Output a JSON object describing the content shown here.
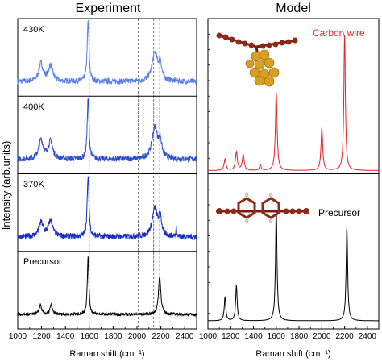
{
  "chart_data": [
    {
      "type": "line",
      "title": "Experiment",
      "xlabel": "Raman shift (cm⁻¹)",
      "ylabel": "Intensity (arb.units)",
      "xlim": [
        1000,
        2500
      ],
      "xticks": [
        "1000",
        "1200",
        "1400",
        "1600",
        "1800",
        "2000",
        "2200",
        "2400"
      ],
      "reference_lines": [
        1600,
        2010,
        2140,
        2190
      ],
      "series": [
        {
          "name": "430K",
          "color": "#5b7fe6",
          "peaks": [
            {
              "x": 1195,
              "h": 0.28,
              "w": 22
            },
            {
              "x": 1275,
              "h": 0.25,
              "w": 22
            },
            {
              "x": 1590,
              "h": 0.95,
              "w": 9
            },
            {
              "x": 2150,
              "h": 0.45,
              "w": 28
            },
            {
              "x": 2195,
              "h": 0.25,
              "w": 14
            }
          ]
        },
        {
          "name": "400K",
          "color": "#2d4fd6",
          "peaks": [
            {
              "x": 1195,
              "h": 0.3,
              "w": 22
            },
            {
              "x": 1275,
              "h": 0.28,
              "w": 22
            },
            {
              "x": 1590,
              "h": 0.95,
              "w": 9
            },
            {
              "x": 2150,
              "h": 0.5,
              "w": 28
            },
            {
              "x": 2195,
              "h": 0.25,
              "w": 14
            }
          ]
        },
        {
          "name": "370K",
          "color": "#1a2fbf",
          "peaks": [
            {
              "x": 1195,
              "h": 0.22,
              "w": 22
            },
            {
              "x": 1275,
              "h": 0.25,
              "w": 22
            },
            {
              "x": 1590,
              "h": 0.95,
              "w": 9
            },
            {
              "x": 2150,
              "h": 0.45,
              "w": 26
            },
            {
              "x": 2195,
              "h": 0.3,
              "w": 12
            },
            {
              "x": 2330,
              "h": 0.2,
              "w": 3
            }
          ]
        },
        {
          "name": "Precursor",
          "color": "#000000",
          "peaks": [
            {
              "x": 1190,
              "h": 0.15,
              "w": 12
            },
            {
              "x": 1280,
              "h": 0.15,
              "w": 12
            },
            {
              "x": 1590,
              "h": 0.9,
              "w": 8
            },
            {
              "x": 2190,
              "h": 0.6,
              "w": 12
            }
          ]
        }
      ]
    },
    {
      "type": "line",
      "title": "Model",
      "xlabel": "Raman shift (cm⁻¹)",
      "xlim": [
        1000,
        2500
      ],
      "xticks": [
        "1000",
        "1200",
        "1400",
        "1600",
        "1800",
        "2000",
        "2200",
        "2400"
      ],
      "series": [
        {
          "name": "Carbon wire",
          "color": "#e8202a",
          "peaks": [
            {
              "x": 1150,
              "h": 0.08,
              "w": 10
            },
            {
              "x": 1250,
              "h": 0.13,
              "w": 10
            },
            {
              "x": 1310,
              "h": 0.11,
              "w": 10
            },
            {
              "x": 1460,
              "h": 0.04,
              "w": 8
            },
            {
              "x": 1600,
              "h": 0.55,
              "w": 9
            },
            {
              "x": 2000,
              "h": 0.3,
              "w": 9
            },
            {
              "x": 2200,
              "h": 0.95,
              "w": 8
            }
          ]
        },
        {
          "name": "Precursor",
          "color": "#000000",
          "peaks": [
            {
              "x": 1150,
              "h": 0.17,
              "w": 8
            },
            {
              "x": 1250,
              "h": 0.25,
              "w": 8
            },
            {
              "x": 1600,
              "h": 0.78,
              "w": 8
            },
            {
              "x": 2220,
              "h": 0.66,
              "w": 8
            }
          ]
        }
      ]
    }
  ]
}
